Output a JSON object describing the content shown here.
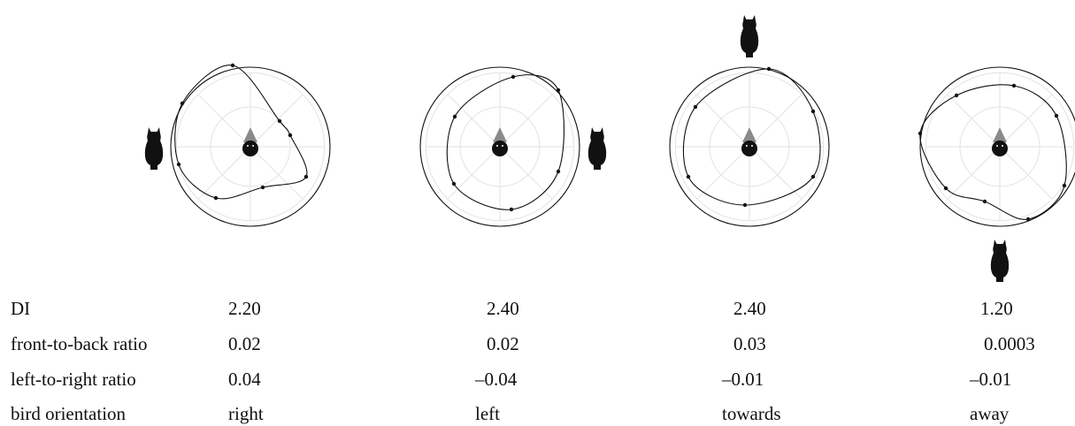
{
  "panels": [
    {
      "id": "right",
      "bird_orientation": "right",
      "owl_position": "left",
      "DI": "2.20",
      "front_to_back": "0.02",
      "left_to_right": "0.04"
    },
    {
      "id": "left",
      "bird_orientation": "left",
      "owl_position": "right",
      "DI": "2.40",
      "front_to_back": "0.02",
      "left_to_right": "–0.04"
    },
    {
      "id": "towards",
      "bird_orientation": "towards",
      "owl_position": "top",
      "DI": "2.40",
      "front_to_back": "0.03",
      "left_to_right": "–0.01"
    },
    {
      "id": "away",
      "bird_orientation": "away",
      "owl_position": "bottom",
      "DI": "1.20",
      "front_to_back": "0.0003",
      "left_to_right": "–0.01"
    }
  ],
  "table": {
    "row_labels": {
      "di": "DI",
      "front_to_back": "front-to-back ratio",
      "left_to_right": "left-to-right ratio",
      "bird_orientation": "bird orientation"
    }
  },
  "colors": {
    "ink": "#111111",
    "grid": "#e2e2e2",
    "head_cone": "#8a8a8a"
  },
  "icons": {
    "owl": "owl-silhouette-icon",
    "head": "bird-head-icon"
  }
}
